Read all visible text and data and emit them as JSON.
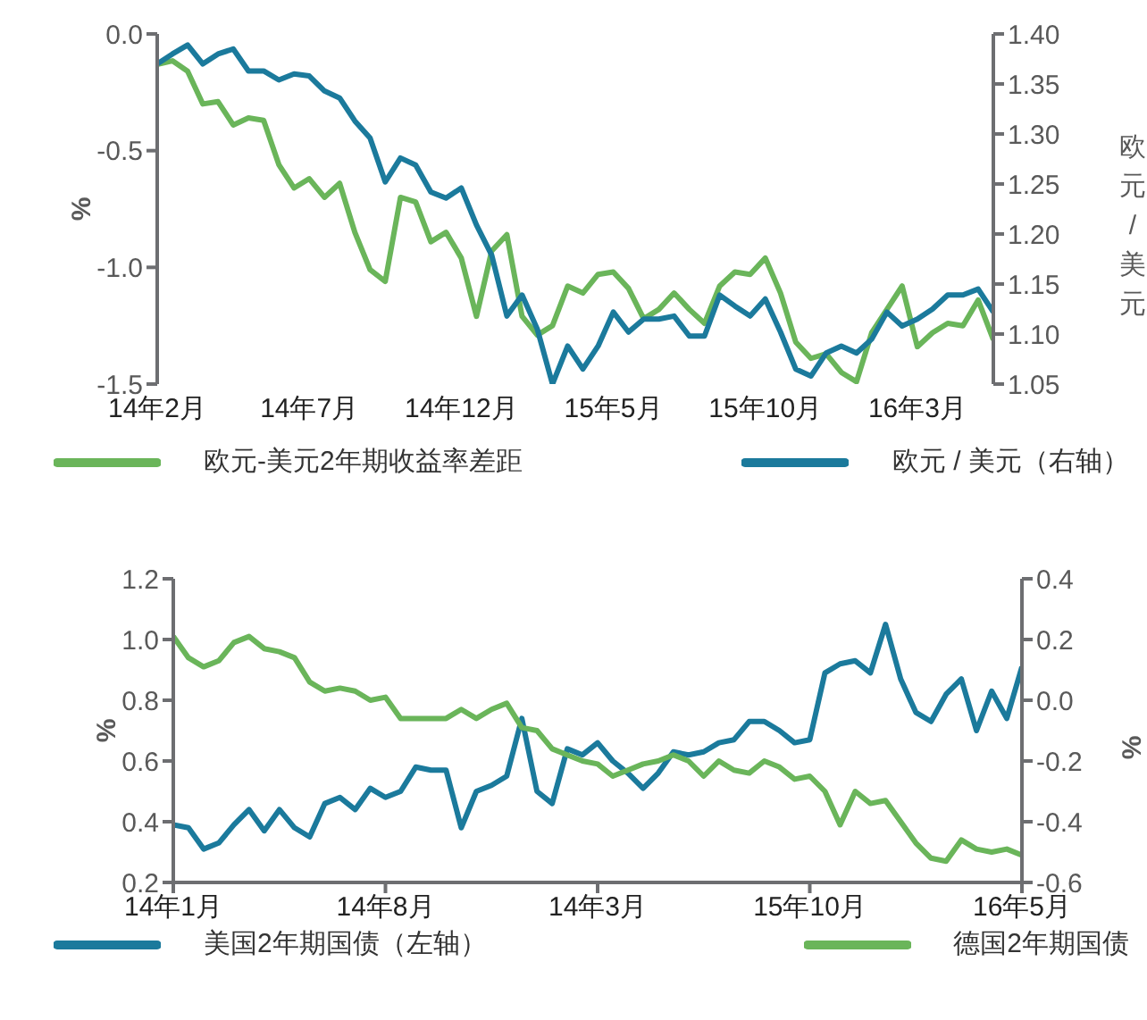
{
  "chart_data": [
    {
      "type": "line",
      "ylabel": "%",
      "y2label": "欧元/美元",
      "legend": "bottom",
      "categories": [
        "14年2月",
        null,
        null,
        null,
        null,
        null,
        null,
        null,
        null,
        null,
        "14年7月",
        null,
        null,
        null,
        null,
        null,
        null,
        null,
        null,
        null,
        "14年12月",
        null,
        null,
        null,
        null,
        null,
        null,
        null,
        null,
        null,
        "15年5月",
        null,
        null,
        null,
        null,
        null,
        null,
        null,
        null,
        null,
        "15年10月",
        null,
        null,
        null,
        null,
        null,
        null,
        null,
        null,
        null,
        "16年3月",
        null,
        null,
        null,
        null,
        null
      ],
      "ylim": [
        -1.5,
        0
      ],
      "yticks": [
        {
          "value": -1.5,
          "label": "-1.5"
        },
        {
          "value": -1,
          "label": "-1.0"
        },
        {
          "value": -0.5,
          "label": "-0.5"
        },
        {
          "value": 0,
          "label": "0.0"
        }
      ],
      "y2lim": [
        1.05,
        1.4
      ],
      "y2ticks": [
        {
          "value": 1.05,
          "label": "1.05"
        },
        {
          "value": 1.1,
          "label": "1.10"
        },
        {
          "value": 1.15,
          "label": "1.15"
        },
        {
          "value": 1.2,
          "label": "1.20"
        },
        {
          "value": 1.25,
          "label": "1.25"
        },
        {
          "value": 1.3,
          "label": "1.30"
        },
        {
          "value": 1.35,
          "label": "1.35"
        },
        {
          "value": 1.4,
          "label": "1.40"
        }
      ],
      "series": [
        {
          "name": "欧元-美元2年期收益率差距",
          "color": "#6ab55a",
          "values": [
            -0.13,
            -0.115,
            -0.16,
            -0.3,
            -0.29,
            -0.39,
            -0.36,
            -0.37,
            -0.56,
            -0.66,
            -0.62,
            -0.7,
            -0.64,
            -0.85,
            -1.01,
            -1.06,
            -0.7,
            -0.72,
            -0.89,
            -0.85,
            -0.96,
            -1.21,
            -0.93,
            -0.86,
            -1.21,
            -1.29,
            -1.25,
            -1.08,
            -1.11,
            -1.03,
            -1.02,
            -1.09,
            -1.22,
            -1.18,
            -1.11,
            -1.18,
            -1.24,
            -1.08,
            -1.02,
            -1.03,
            -0.96,
            -1.11,
            -1.32,
            -1.39,
            -1.37,
            -1.45,
            -1.49,
            -1.28,
            -1.18,
            -1.08,
            -1.34,
            -1.28,
            -1.24,
            -1.25,
            -1.14,
            -1.31
          ]
        },
        {
          "name": "欧元 / 美元（右轴）",
          "color": "#1b7a9c",
          "axis": "y2",
          "values": [
            1.37,
            1.38,
            1.389,
            1.37,
            1.38,
            1.385,
            1.363,
            1.363,
            1.354,
            1.36,
            1.358,
            1.343,
            1.336,
            1.313,
            1.296,
            1.252,
            1.276,
            1.269,
            1.242,
            1.236,
            1.246,
            1.209,
            1.179,
            1.118,
            1.139,
            1.105,
            1.05,
            1.088,
            1.065,
            1.088,
            1.122,
            1.102,
            1.115,
            1.115,
            1.118,
            1.098,
            1.098,
            1.139,
            1.128,
            1.118,
            1.135,
            1.102,
            1.065,
            1.058,
            1.081,
            1.088,
            1.081,
            1.095,
            1.122,
            1.108,
            1.115,
            1.125,
            1.139,
            1.139,
            1.145,
            1.122
          ]
        }
      ]
    },
    {
      "type": "line",
      "ylabel": "%",
      "y2label": "%",
      "legend": "bottom",
      "categories": [
        "14年1月",
        null,
        null,
        null,
        null,
        null,
        null,
        null,
        null,
        null,
        null,
        null,
        null,
        null,
        "14年8月",
        null,
        null,
        null,
        null,
        null,
        null,
        null,
        null,
        null,
        null,
        null,
        null,
        null,
        "14年3月",
        null,
        null,
        null,
        null,
        null,
        null,
        null,
        null,
        null,
        null,
        null,
        null,
        null,
        "15年10月",
        null,
        null,
        null,
        null,
        null,
        null,
        null,
        null,
        null,
        null,
        null,
        null,
        null,
        "16年5月"
      ],
      "ylim": [
        0.2,
        1.2
      ],
      "yticks": [
        {
          "value": 0.2,
          "label": "0.2"
        },
        {
          "value": 0.4,
          "label": "0.4"
        },
        {
          "value": 0.6,
          "label": "0.6"
        },
        {
          "value": 0.8,
          "label": "0.8"
        },
        {
          "value": 1,
          "label": "1.0"
        },
        {
          "value": 1.2,
          "label": "1.2"
        }
      ],
      "y2lim": [
        -0.6,
        0.4
      ],
      "y2ticks": [
        {
          "value": -0.6,
          "label": "-0.6"
        },
        {
          "value": -0.4,
          "label": "-0.4"
        },
        {
          "value": -0.2,
          "label": "-0.2"
        },
        {
          "value": 0,
          "label": "0.0"
        },
        {
          "value": 0.2,
          "label": "0.2"
        },
        {
          "value": 0.4,
          "label": "0.4"
        }
      ],
      "series": [
        {
          "name": "美国2年期国债（左轴）",
          "color": "#1b7a9c",
          "values": [
            0.39,
            0.38,
            0.31,
            0.33,
            0.39,
            0.44,
            0.37,
            0.44,
            0.38,
            0.35,
            0.46,
            0.48,
            0.44,
            0.51,
            0.48,
            0.5,
            0.58,
            0.57,
            0.57,
            0.38,
            0.5,
            0.52,
            0.55,
            0.74,
            0.5,
            0.46,
            0.64,
            0.62,
            0.66,
            0.6,
            0.56,
            0.51,
            0.56,
            0.63,
            0.62,
            0.63,
            0.66,
            0.67,
            0.73,
            0.73,
            0.7,
            0.66,
            0.67,
            0.89,
            0.92,
            0.93,
            0.89,
            1.05,
            0.87,
            0.76,
            0.73,
            0.82,
            0.87,
            0.7,
            0.83,
            0.74,
            0.91
          ]
        },
        {
          "name": "德国2年期国债",
          "color": "#6ab55a",
          "axis": "y2",
          "values": [
            0.21,
            0.14,
            0.11,
            0.13,
            0.19,
            0.21,
            0.17,
            0.16,
            0.14,
            0.06,
            0.03,
            0.04,
            0.03,
            0.0,
            0.01,
            -0.06,
            -0.06,
            -0.06,
            -0.06,
            -0.03,
            -0.06,
            -0.03,
            -0.01,
            -0.09,
            -0.1,
            -0.16,
            -0.18,
            -0.2,
            -0.21,
            -0.25,
            -0.23,
            -0.21,
            -0.2,
            -0.18,
            -0.2,
            -0.25,
            -0.2,
            -0.23,
            -0.24,
            -0.2,
            -0.22,
            -0.26,
            -0.25,
            -0.3,
            -0.41,
            -0.3,
            -0.34,
            -0.33,
            -0.4,
            -0.47,
            -0.52,
            -0.53,
            -0.46,
            -0.49,
            -0.5,
            -0.49,
            -0.51
          ]
        }
      ]
    }
  ]
}
